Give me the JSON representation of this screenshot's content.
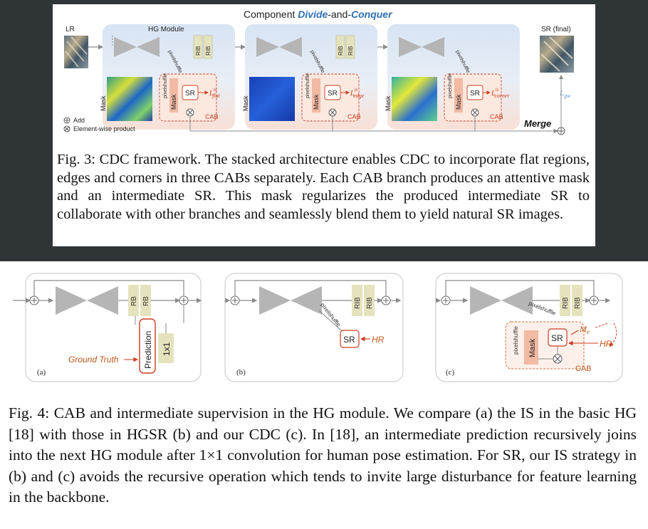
{
  "fig3": {
    "title_prefix": "Component ",
    "title_divide": "Divide",
    "title_and": "-and-",
    "title_conquer": "Conquer",
    "lr_label": "LR",
    "hg_label": "HG Module",
    "sr_final_label": "SR (final)",
    "rib": "RIB",
    "pixelshuffle": "pixelshuffle",
    "mask": "Mask",
    "sr": "SR",
    "cab": "CAB",
    "loss_sym": "L",
    "loss_sup": "is",
    "loss_flat": "flat",
    "loss_edge": "edge",
    "loss_corner": "corner",
    "lgw_sym": "L",
    "lgw_sub": "gw",
    "merge": "Merge",
    "legend_add": "Add",
    "legend_product": "Element-wise product",
    "caption": "Fig. 3: CDC framework. The stacked architecture enables CDC to incorporate flat regions, edges and corners in three CABs separately. Each CAB branch produces an attentive mask and an intermediate SR. This mask regularizes the produced intermediate SR to collaborate with other branches and seamlessly blend them to yield natural SR images."
  },
  "fig4": {
    "rb": "RB",
    "rib": "RIB",
    "prediction": "Prediction",
    "conv": "1x1",
    "ground_truth": "Ground Truth",
    "pixelshuffle": "pixelshuffle",
    "sr": "SR",
    "hr": "HR",
    "me_sym": "M",
    "me_sub": "e",
    "mask": "Mask",
    "cab": "CAB",
    "label_a": "(a)",
    "label_b": "(b)",
    "label_c": "(c)",
    "caption": "Fig. 4: CAB and intermediate supervision in the HG module. We compare (a) the IS in the basic HG [18] with those in HGSR (b) and our CDC (c). In [18], an intermediate prediction recursively joins into the next HG module after 1×1 convolution for human pose estimation. For SR, our IS strategy in (b) and (c) avoids the recursive operation which tends to invite large disturbance for feature learning in the backbone."
  },
  "colors": {
    "dark_band": "#2f3437",
    "module_blue": "#dbe6f2",
    "module_pink": "#f8dcd0",
    "rib_fill": "#e5e3bd",
    "mask_fill": "#f2b9a3",
    "orange_text": "#c0551a",
    "title_blue": "#2e6fb4",
    "hourglass_gray": "#b5b5b5"
  }
}
